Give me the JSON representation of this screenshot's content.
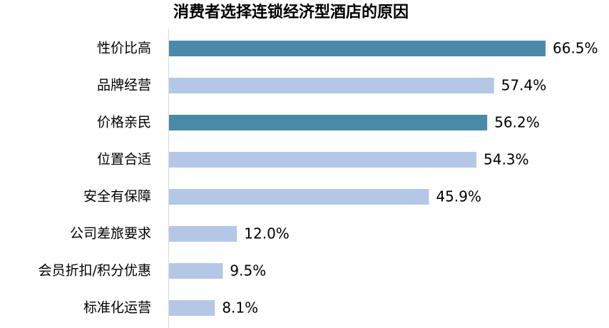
{
  "chart_data": {
    "type": "bar",
    "orientation": "horizontal",
    "title": "消费者选择连锁经济型酒店的原因",
    "categories": [
      "性价比高",
      "品牌经营",
      "价格亲民",
      "位置合适",
      "安全有保障",
      "公司差旅要求",
      "会员折扣/积分优惠",
      "标准化运营"
    ],
    "values": [
      66.5,
      57.4,
      56.2,
      54.3,
      45.9,
      12.0,
      9.5,
      8.1
    ],
    "value_labels": [
      "66.5%",
      "57.4%",
      "56.2%",
      "54.3%",
      "45.9%",
      "12.0%",
      "9.5%",
      "8.1%"
    ],
    "colors": [
      "#4a8aa9",
      "#b4c7e7",
      "#4a8aa9",
      "#b4c7e7",
      "#b4c7e7",
      "#b4c7e7",
      "#b4c7e7",
      "#b4c7e7"
    ]
  }
}
